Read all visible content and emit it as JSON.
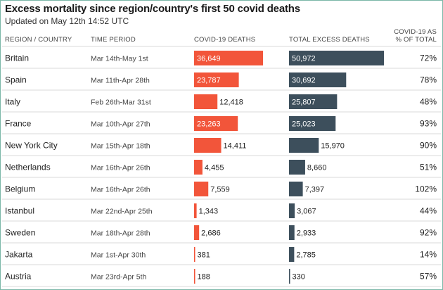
{
  "title": "Excess mortality since region/country's first 50 covid deaths",
  "subtitle": "Updated on May 12th 14:52 UTC",
  "headers": {
    "region": "REGION / COUNTRY",
    "period": "TIME PERIOD",
    "covid": "COVID-19 DEATHS",
    "excess": "TOTAL EXCESS DEATHS",
    "pct_line1": "COVID-19 AS",
    "pct_line2": "% OF TOTAL"
  },
  "colors": {
    "covid_bar": "#f2553a",
    "excess_bar": "#3d4f5c",
    "row_divider": "#d9d9d9",
    "frame": "#7bb7a8"
  },
  "chart_data": {
    "type": "table",
    "title": "Excess mortality since region/country's first 50 covid deaths",
    "columns": [
      "REGION / COUNTRY",
      "TIME PERIOD",
      "COVID-19 DEATHS",
      "TOTAL EXCESS DEATHS",
      "COVID-19 AS % OF TOTAL"
    ],
    "rows": [
      {
        "region": "Britain",
        "period": "Mar 14th-May 1st",
        "covid": "36,649",
        "excess": "50,972",
        "pct": "72%",
        "covid_value": 36649,
        "excess_value": 50972
      },
      {
        "region": "Spain",
        "period": "Mar 11th-Apr 28th",
        "covid": "23,787",
        "excess": "30,692",
        "pct": "78%",
        "covid_value": 23787,
        "excess_value": 30692
      },
      {
        "region": "Italy",
        "period": "Feb 26th-Mar 31st",
        "covid": "12,418",
        "excess": "25,807",
        "pct": "48%",
        "covid_value": 12418,
        "excess_value": 25807
      },
      {
        "region": "France",
        "period": "Mar 10th-Apr 27th",
        "covid": "23,263",
        "excess": "25,023",
        "pct": "93%",
        "covid_value": 23263,
        "excess_value": 25023
      },
      {
        "region": "New York City",
        "period": "Mar 15th-Apr 18th",
        "covid": "14,411",
        "excess": "15,970",
        "pct": "90%",
        "covid_value": 14411,
        "excess_value": 15970
      },
      {
        "region": "Netherlands",
        "period": "Mar 16th-Apr 26th",
        "covid": "4,455",
        "excess": "8,660",
        "pct": "51%",
        "covid_value": 4455,
        "excess_value": 8660
      },
      {
        "region": "Belgium",
        "period": "Mar 16th-Apr 26th",
        "covid": "7,559",
        "excess": "7,397",
        "pct": "102%",
        "covid_value": 7559,
        "excess_value": 7397
      },
      {
        "region": "Istanbul",
        "period": "Mar 22nd-Apr 25th",
        "covid": "1,343",
        "excess": "3,067",
        "pct": "44%",
        "covid_value": 1343,
        "excess_value": 3067
      },
      {
        "region": "Sweden",
        "period": "Mar 18th-Apr 28th",
        "covid": "2,686",
        "excess": "2,933",
        "pct": "92%",
        "covid_value": 2686,
        "excess_value": 2933
      },
      {
        "region": "Jakarta",
        "period": "Mar 1st-Apr 30th",
        "covid": "381",
        "excess": "2,785",
        "pct": "14%",
        "covid_value": 381,
        "excess_value": 2785
      },
      {
        "region": "Austria",
        "period": "Mar 23rd-Apr 5th",
        "covid": "188",
        "excess": "330",
        "pct": "57%",
        "covid_value": 188,
        "excess_value": 330
      }
    ]
  }
}
